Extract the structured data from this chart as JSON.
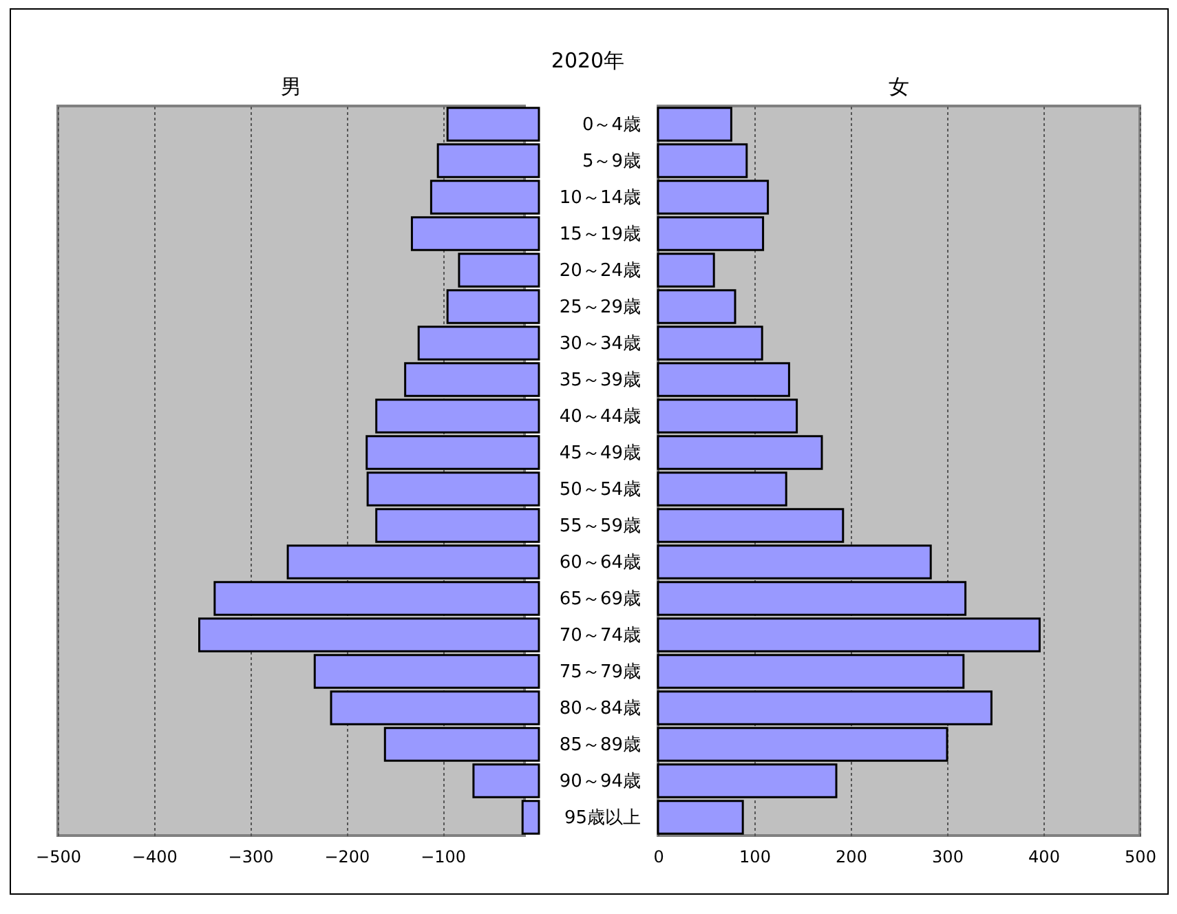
{
  "chart_data": [
    {
      "type": "bar",
      "orientation": "horizontal",
      "title": "男",
      "annotations": [
        "2020年"
      ],
      "categories": [
        "0～4歳",
        "5～9歳",
        "10～14歳",
        "15～19歳",
        "20～24歳",
        "25～29歳",
        "30～34歳",
        "35～39歳",
        "40～44歳",
        "45～49歳",
        "50～54歳",
        "55～59歳",
        "60～64歳",
        "65～69歳",
        "70～74歳",
        "75～79歳",
        "80～84歳",
        "85～89歳",
        "90～94歳",
        "95歳以上"
      ],
      "values": [
        -95,
        -105,
        -112,
        -132,
        -83,
        -95,
        -125,
        -139,
        -169,
        -179,
        -178,
        -169,
        -261,
        -337,
        -353,
        -233,
        -216,
        -160,
        -68,
        -17
      ],
      "color": "#9999ff",
      "xlim": [
        -500,
        -15
      ],
      "xticks": [
        -500,
        -400,
        -300,
        -200,
        -100
      ],
      "grid": "x",
      "tick_labels": "xy"
    },
    {
      "type": "bar",
      "orientation": "horizontal",
      "title": "女",
      "categories": [
        null,
        null,
        null,
        null,
        null,
        null,
        null,
        null,
        null,
        null,
        null,
        null,
        null,
        null,
        null,
        null,
        null,
        null,
        null,
        null
      ],
      "values": [
        76,
        92,
        114,
        109,
        58,
        80,
        108,
        136,
        144,
        170,
        133,
        192,
        283,
        319,
        396,
        317,
        346,
        300,
        185,
        88
      ],
      "color": "#9999ff",
      "xlim": [
        0,
        500
      ],
      "xticks": [
        0,
        100,
        200,
        300,
        400,
        500
      ],
      "grid": "x",
      "tick_labels": "x"
    }
  ]
}
